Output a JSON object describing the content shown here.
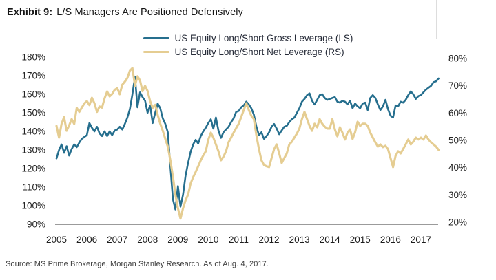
{
  "title": {
    "prefix": "Exhibit 9:",
    "text": "L/S Managers Are Positioned Defensively"
  },
  "source": "Source: MS Prime Brokerage, Morgan Stanley Research. As of Aug. 4, 2017.",
  "colors": {
    "gross_line": "#266f8e",
    "net_line": "#e5cd92",
    "axis_line": "#9b9b9b",
    "tick_text": "#222222"
  },
  "chart_data": {
    "type": "line",
    "title": "L/S Managers Are Positioned Defensively",
    "x_unit": "monthly from Jan 2005 to Aug 2017",
    "x_tick_labels": [
      "2005",
      "2006",
      "2007",
      "2008",
      "2009",
      "2010",
      "2011",
      "2012",
      "2013",
      "2014",
      "2015",
      "2016",
      "2017"
    ],
    "left_axis": {
      "ticks": [
        "180%",
        "170%",
        "160%",
        "150%",
        "140%",
        "130%",
        "120%",
        "110%",
        "100%",
        "90%"
      ],
      "min": 90,
      "max": 180
    },
    "right_axis": {
      "ticks": [
        "80%",
        "70%",
        "60%",
        "50%",
        "40%",
        "30%",
        "20%"
      ],
      "min": 20,
      "max": 80
    },
    "grid": false,
    "legend_position": "top-center",
    "series": [
      {
        "name": "US Equity Long/Short Gross Leverage (LS)",
        "axis": "left",
        "color": "#266f8e",
        "values": [
          125.5,
          130,
          133,
          128.5,
          132,
          127,
          130.5,
          133,
          131.5,
          134,
          136,
          137,
          138,
          144.5,
          142,
          140,
          142.5,
          139,
          137.5,
          140,
          137.5,
          140,
          138,
          140.5,
          141,
          142.5,
          141,
          144,
          147.5,
          152,
          160,
          169.5,
          153,
          161,
          158.5,
          156.5,
          150,
          154,
          144.5,
          150,
          155,
          152.5,
          147,
          144,
          139.5,
          121,
          103.5,
          98,
          110.5,
          99.5,
          106,
          116,
          123,
          129,
          133,
          135.5,
          133.5,
          137.5,
          140,
          142,
          144.5,
          146.5,
          141.5,
          147.5,
          140.5,
          136.5,
          139.5,
          141,
          142.5,
          145,
          147,
          150.5,
          151,
          153,
          154,
          156,
          154.5,
          152.5,
          149,
          142.5,
          138,
          139.5,
          136,
          137.5,
          139.5,
          142.5,
          144,
          141.5,
          138.5,
          140.5,
          142.5,
          143,
          145,
          146.5,
          147.5,
          150,
          152.5,
          156,
          157.5,
          159.5,
          160.5,
          156.5,
          154.5,
          157,
          159.5,
          160,
          158,
          157,
          157.5,
          158,
          158.5,
          156,
          155.5,
          156.5,
          156,
          154.5,
          156.5,
          152.5,
          155,
          153.5,
          152.5,
          155,
          155.5,
          151.5,
          158,
          159.5,
          158,
          154.5,
          151.5,
          153.5,
          157,
          152,
          148.5,
          147.5,
          154,
          153.5,
          156,
          155.5,
          157,
          159.5,
          161.5,
          160,
          157.5,
          159,
          159.5,
          161,
          162.5,
          163.5,
          164.5,
          166.5,
          167,
          168.5
        ]
      },
      {
        "name": "US Equity Long/Short Net Leverage (RS)",
        "axis": "right",
        "color": "#e5cd92",
        "values": [
          55.3,
          51,
          56,
          58.5,
          53.5,
          55.5,
          57.8,
          56,
          61.9,
          60.4,
          62,
          63.5,
          64.4,
          62.9,
          65.6,
          63.6,
          60.4,
          62.4,
          62,
          65.4,
          67.9,
          66.1,
          67,
          68.5,
          69.1,
          66.9,
          70.4,
          71.5,
          72.9,
          75.5,
          76.5,
          70,
          73.5,
          72,
          68,
          70,
          68.1,
          64.4,
          61.9,
          63,
          59.3,
          56.1,
          53.5,
          50.5,
          47.7,
          42.7,
          36.7,
          30.1,
          25.1,
          21.3,
          25.1,
          28,
          30.1,
          34.2,
          36.5,
          38.4,
          40.5,
          42.7,
          44.5,
          46,
          50.3,
          52.8,
          51,
          48.5,
          46,
          42.7,
          44,
          46,
          49.3,
          51,
          52.8,
          54.5,
          56.1,
          58.6,
          61.1,
          63.6,
          61.1,
          59,
          57.8,
          51.8,
          46.8,
          42.7,
          41,
          40.5,
          40.2,
          43.5,
          46.8,
          48.5,
          45.2,
          41.7,
          43.5,
          45.2,
          48.5,
          49.5,
          51,
          52.5,
          54.3,
          57.8,
          60.4,
          57.8,
          55.3,
          53.5,
          56.1,
          54.8,
          57.8,
          56.1,
          55,
          54.3,
          54.3,
          57.8,
          54,
          51.5,
          54.8,
          52.8,
          50.3,
          52.8,
          54,
          50.5,
          53,
          56.8,
          55.3,
          56.1,
          56.1,
          55.3,
          52.8,
          51,
          49.3,
          47.7,
          48.5,
          47.5,
          48,
          46.8,
          43.5,
          40.2,
          44.3,
          46,
          45.2,
          46.8,
          48.5,
          50.3,
          48.5,
          49.5,
          51,
          50.3,
          51,
          50.3,
          51.8,
          50.3,
          49.3,
          48.5,
          47.7,
          46.5
        ]
      }
    ]
  }
}
